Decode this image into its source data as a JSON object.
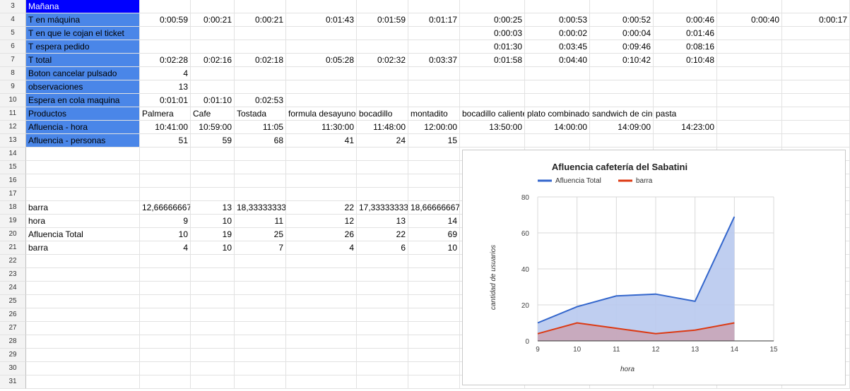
{
  "rows": [
    {
      "num": "3",
      "cells": [
        {
          "c": 0,
          "t": "Mañana",
          "s": "dblue"
        }
      ]
    },
    {
      "num": "4",
      "cells": [
        {
          "c": 0,
          "t": "T en máquina",
          "s": "blue"
        },
        {
          "c": 1,
          "t": "0:00:59",
          "r": 1
        },
        {
          "c": 2,
          "t": "0:00:21",
          "r": 1
        },
        {
          "c": 3,
          "t": "0:00:21",
          "r": 1
        },
        {
          "c": 4,
          "t": "0:01:43",
          "r": 1
        },
        {
          "c": 5,
          "t": "0:01:59",
          "r": 1
        },
        {
          "c": 6,
          "t": "0:01:17",
          "r": 1
        },
        {
          "c": 7,
          "t": "0:00:25",
          "r": 1
        },
        {
          "c": 8,
          "t": "0:00:53",
          "r": 1
        },
        {
          "c": 9,
          "t": "0:00:52",
          "r": 1
        },
        {
          "c": 10,
          "t": "0:00:46",
          "r": 1
        },
        {
          "c": 11,
          "t": "0:00:40",
          "r": 1
        },
        {
          "c": 12,
          "t": "0:00:17",
          "r": 1
        }
      ]
    },
    {
      "num": "5",
      "cells": [
        {
          "c": 0,
          "t": "T en que le cojan el ticket",
          "s": "blue"
        },
        {
          "c": 7,
          "t": "0:00:03",
          "r": 1
        },
        {
          "c": 8,
          "t": "0:00:02",
          "r": 1
        },
        {
          "c": 9,
          "t": "0:00:04",
          "r": 1
        },
        {
          "c": 10,
          "t": "0:01:46",
          "r": 1
        }
      ]
    },
    {
      "num": "6",
      "cells": [
        {
          "c": 0,
          "t": "T espera pedido",
          "s": "blue"
        },
        {
          "c": 7,
          "t": "0:01:30",
          "r": 1
        },
        {
          "c": 8,
          "t": "0:03:45",
          "r": 1
        },
        {
          "c": 9,
          "t": "0:09:46",
          "r": 1
        },
        {
          "c": 10,
          "t": "0:08:16",
          "r": 1
        }
      ]
    },
    {
      "num": "7",
      "cells": [
        {
          "c": 0,
          "t": "T total",
          "s": "blue"
        },
        {
          "c": 1,
          "t": "0:02:28",
          "r": 1
        },
        {
          "c": 2,
          "t": "0:02:16",
          "r": 1
        },
        {
          "c": 3,
          "t": "0:02:18",
          "r": 1
        },
        {
          "c": 4,
          "t": "0:05:28",
          "r": 1
        },
        {
          "c": 5,
          "t": "0:02:32",
          "r": 1
        },
        {
          "c": 6,
          "t": "0:03:37",
          "r": 1
        },
        {
          "c": 7,
          "t": "0:01:58",
          "r": 1
        },
        {
          "c": 8,
          "t": "0:04:40",
          "r": 1
        },
        {
          "c": 9,
          "t": "0:10:42",
          "r": 1
        },
        {
          "c": 10,
          "t": "0:10:48",
          "r": 1
        }
      ]
    },
    {
      "num": "8",
      "cells": [
        {
          "c": 0,
          "t": "Boton cancelar pulsado",
          "s": "blue"
        },
        {
          "c": 1,
          "t": "4",
          "r": 1
        }
      ]
    },
    {
      "num": "9",
      "cells": [
        {
          "c": 0,
          "t": "observaciones",
          "s": "blue"
        },
        {
          "c": 1,
          "t": "13",
          "r": 1
        }
      ]
    },
    {
      "num": "10",
      "cells": [
        {
          "c": 0,
          "t": "Espera en cola maquina",
          "s": "blue"
        },
        {
          "c": 1,
          "t": "0:01:01",
          "r": 1
        },
        {
          "c": 2,
          "t": "0:01:10",
          "r": 1
        },
        {
          "c": 3,
          "t": "0:02:53",
          "r": 1
        }
      ]
    },
    {
      "num": "11",
      "cells": [
        {
          "c": 0,
          "t": "Productos",
          "s": "blue"
        },
        {
          "c": 1,
          "t": "Palmera"
        },
        {
          "c": 2,
          "t": "Cafe"
        },
        {
          "c": 3,
          "t": "Tostada"
        },
        {
          "c": 4,
          "t": "formula desayuno"
        },
        {
          "c": 5,
          "t": "bocadillo"
        },
        {
          "c": 6,
          "t": "montadito"
        },
        {
          "c": 7,
          "t": "bocadillo caliente"
        },
        {
          "c": 8,
          "t": "plato combinado"
        },
        {
          "c": 9,
          "t": "sandwich de cine"
        },
        {
          "c": 10,
          "t": "pasta"
        }
      ]
    },
    {
      "num": "12",
      "cells": [
        {
          "c": 0,
          "t": "Afluencia - hora",
          "s": "blue"
        },
        {
          "c": 1,
          "t": "10:41:00",
          "r": 1
        },
        {
          "c": 2,
          "t": "10:59:00",
          "r": 1
        },
        {
          "c": 3,
          "t": "11:05",
          "r": 1
        },
        {
          "c": 4,
          "t": "11:30:00",
          "r": 1
        },
        {
          "c": 5,
          "t": "11:48:00",
          "r": 1
        },
        {
          "c": 6,
          "t": "12:00:00",
          "r": 1
        },
        {
          "c": 7,
          "t": "13:50:00",
          "r": 1
        },
        {
          "c": 8,
          "t": "14:00:00",
          "r": 1
        },
        {
          "c": 9,
          "t": "14:09:00",
          "r": 1
        },
        {
          "c": 10,
          "t": "14:23:00",
          "r": 1
        }
      ]
    },
    {
      "num": "13",
      "cells": [
        {
          "c": 0,
          "t": "Afluencia - personas",
          "s": "blue"
        },
        {
          "c": 1,
          "t": "51",
          "r": 1
        },
        {
          "c": 2,
          "t": "59",
          "r": 1
        },
        {
          "c": 3,
          "t": "68",
          "r": 1
        },
        {
          "c": 4,
          "t": "41",
          "r": 1
        },
        {
          "c": 5,
          "t": "24",
          "r": 1
        },
        {
          "c": 6,
          "t": "15",
          "r": 1
        }
      ]
    },
    {
      "num": "14",
      "cells": []
    },
    {
      "num": "15",
      "cells": []
    },
    {
      "num": "16",
      "cells": []
    },
    {
      "num": "17",
      "cells": []
    },
    {
      "num": "18",
      "cells": [
        {
          "c": 0,
          "t": "barra"
        },
        {
          "c": 1,
          "t": "12,66666667",
          "r": 1
        },
        {
          "c": 2,
          "t": "13",
          "r": 1
        },
        {
          "c": 3,
          "t": "18,33333333",
          "r": 1
        },
        {
          "c": 4,
          "t": "22",
          "r": 1
        },
        {
          "c": 5,
          "t": "17,33333333",
          "r": 1
        },
        {
          "c": 6,
          "t": "18,66666667",
          "r": 1
        }
      ]
    },
    {
      "num": "19",
      "cells": [
        {
          "c": 0,
          "t": "hora"
        },
        {
          "c": 1,
          "t": "9",
          "r": 1
        },
        {
          "c": 2,
          "t": "10",
          "r": 1
        },
        {
          "c": 3,
          "t": "11",
          "r": 1
        },
        {
          "c": 4,
          "t": "12",
          "r": 1
        },
        {
          "c": 5,
          "t": "13",
          "r": 1
        },
        {
          "c": 6,
          "t": "14",
          "r": 1
        }
      ]
    },
    {
      "num": "20",
      "cells": [
        {
          "c": 0,
          "t": "Afluencia Total"
        },
        {
          "c": 1,
          "t": "10",
          "r": 1
        },
        {
          "c": 2,
          "t": "19",
          "r": 1
        },
        {
          "c": 3,
          "t": "25",
          "r": 1
        },
        {
          "c": 4,
          "t": "26",
          "r": 1
        },
        {
          "c": 5,
          "t": "22",
          "r": 1
        },
        {
          "c": 6,
          "t": "69",
          "r": 1
        }
      ]
    },
    {
      "num": "21",
      "cells": [
        {
          "c": 0,
          "t": "barra"
        },
        {
          "c": 1,
          "t": "4",
          "r": 1
        },
        {
          "c": 2,
          "t": "10",
          "r": 1
        },
        {
          "c": 3,
          "t": "7",
          "r": 1
        },
        {
          "c": 4,
          "t": "4",
          "r": 1
        },
        {
          "c": 5,
          "t": "6",
          "r": 1
        },
        {
          "c": 6,
          "t": "10",
          "r": 1
        }
      ]
    },
    {
      "num": "22",
      "cells": []
    },
    {
      "num": "23",
      "cells": []
    },
    {
      "num": "24",
      "cells": []
    },
    {
      "num": "25",
      "cells": []
    },
    {
      "num": "26",
      "cells": []
    },
    {
      "num": "27",
      "cells": []
    },
    {
      "num": "28",
      "cells": []
    },
    {
      "num": "29",
      "cells": []
    },
    {
      "num": "30",
      "cells": []
    },
    {
      "num": "31",
      "cells": []
    }
  ],
  "chart_data": {
    "type": "area",
    "title": "Afluencia cafetería del Sabatini",
    "xlabel": "hora",
    "ylabel": "cantidad de usuarios",
    "x": [
      9,
      10,
      11,
      12,
      13,
      14
    ],
    "xlim": [
      9,
      15
    ],
    "ylim": [
      0,
      80
    ],
    "xticks": [
      9,
      10,
      11,
      12,
      13,
      14,
      15
    ],
    "yticks": [
      0,
      20,
      40,
      60,
      80
    ],
    "grid": true,
    "legend": "top",
    "series": [
      {
        "name": "Afluencia Total",
        "values": [
          10,
          19,
          25,
          26,
          22,
          69
        ],
        "color": "#3366cc",
        "fill": "#b8c9ee"
      },
      {
        "name": "barra",
        "values": [
          4,
          10,
          7,
          4,
          6,
          10
        ],
        "color": "#dc3912",
        "fill": "#c9a3b5"
      }
    ]
  }
}
